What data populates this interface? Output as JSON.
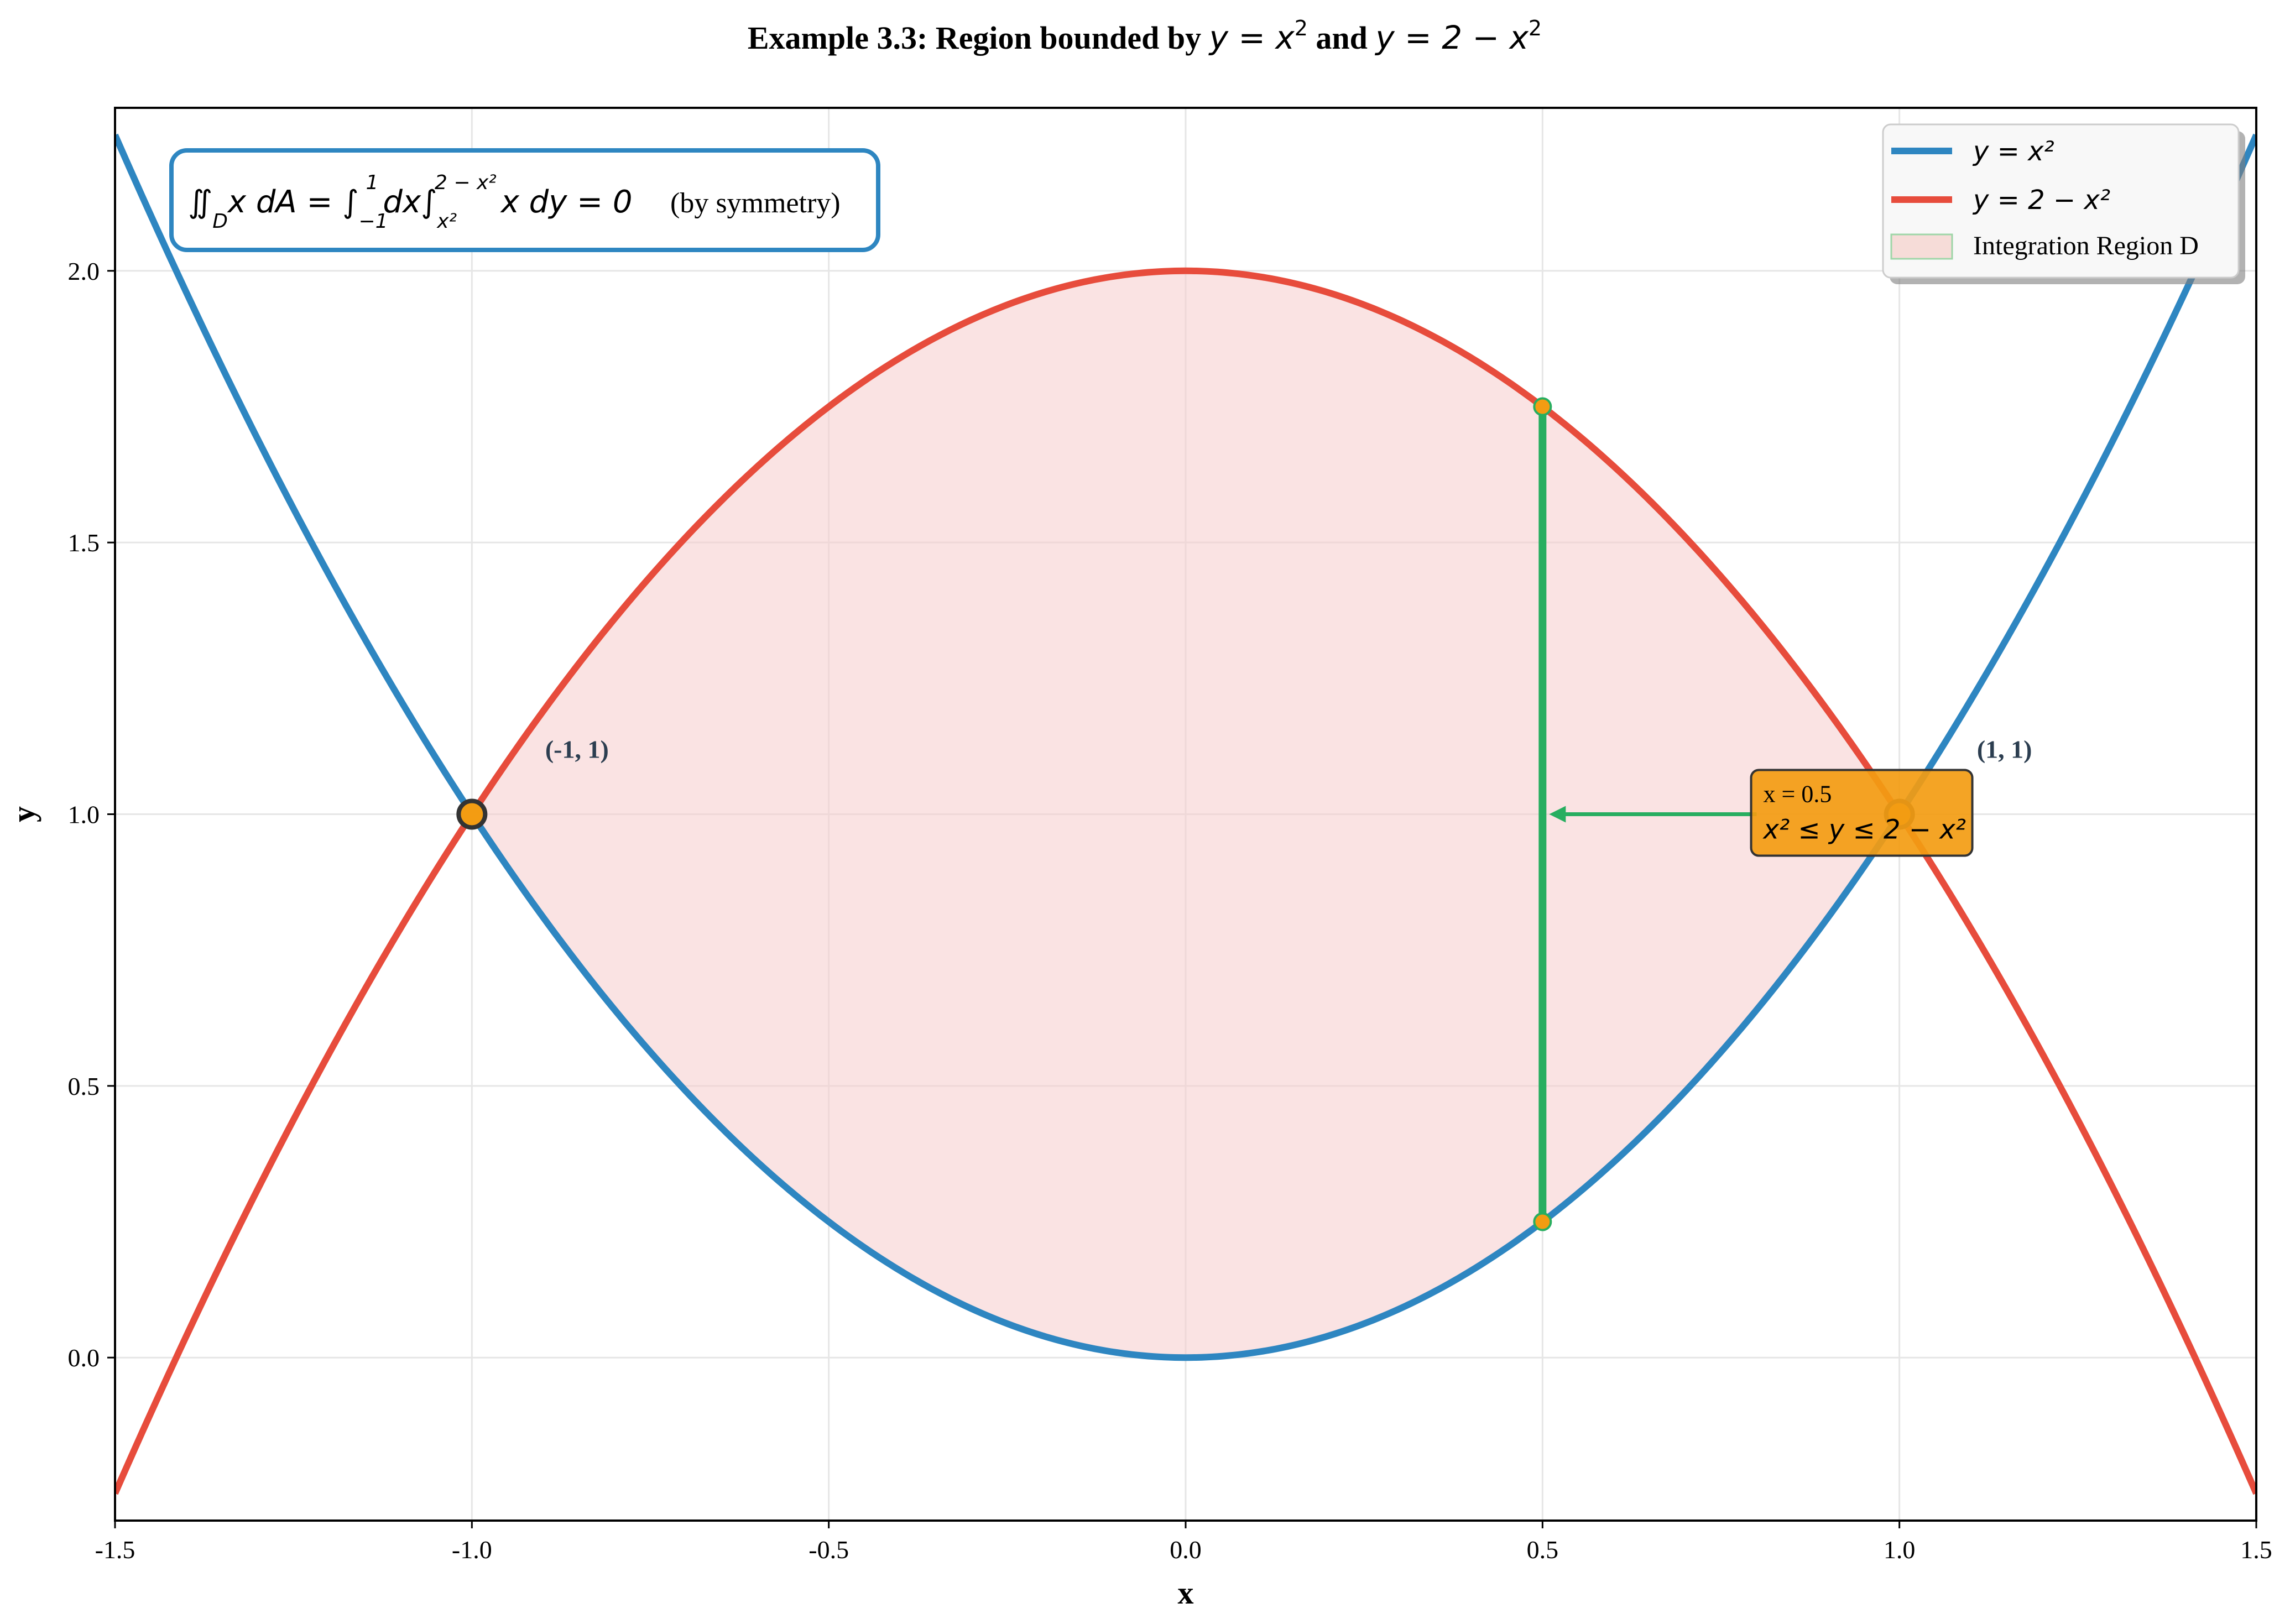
{
  "chart_data": {
    "type": "line",
    "title": {
      "prefix": "Example 3.3: Region bounded by ",
      "eq1": "x",
      "eq1_sup": "2",
      "mid": " and ",
      "eq2": "2 − x",
      "eq2_sup": "2"
    },
    "xlabel": "x",
    "ylabel": "y",
    "xlim": [
      -1.5,
      1.5
    ],
    "ylim": [
      -0.3,
      2.3
    ],
    "xticks": [
      -1.5,
      -1.0,
      -0.5,
      0.0,
      0.5,
      1.0,
      1.5
    ],
    "xtick_labels": [
      "-1.5",
      "-1.0",
      "-0.5",
      "0.0",
      "0.5",
      "1.0",
      "1.5"
    ],
    "yticks": [
      0.0,
      0.5,
      1.0,
      1.5,
      2.0
    ],
    "ytick_labels": [
      "0.0",
      "0.5",
      "1.0",
      "1.5",
      "2.0"
    ],
    "grid": true,
    "legend_position": "top-right",
    "series": [
      {
        "name": "y = x²",
        "expression": "x^2",
        "color": "#2e86c1"
      },
      {
        "name": "y = 2 − x²",
        "expression": "2 - x^2",
        "color": "#e74c3c"
      }
    ],
    "region": {
      "name": "Integration Region D",
      "x_range": [
        -1,
        1
      ],
      "lower": "x^2",
      "upper": "2 - x^2",
      "color": "#f6cccc"
    },
    "intersections": [
      {
        "x": -1,
        "y": 1,
        "label": "(-1, 1)"
      },
      {
        "x": 1,
        "y": 1,
        "label": "(1, 1)"
      }
    ],
    "vertical_slice": {
      "x": 0.5,
      "y_low": 0.25,
      "y_high": 1.75,
      "color": "#27ae60"
    },
    "slice_annotation": {
      "line1": "x = 0.5",
      "line2": "x² ≤ y ≤ 2 − x²",
      "arrow_to": {
        "x": 0.5,
        "y": 1.0
      },
      "text_at": {
        "x": 0.8,
        "y": 1.0
      },
      "color": "#f39c12"
    },
    "formula_box": {
      "math": "∬D x dA = ∫₋₁¹ dx ∫ₓ²²⁻ˣ² x dy = 0",
      "note": "(by symmetry)",
      "border_color": "#2e86c1"
    },
    "colors": {
      "axis": "#000000",
      "grid": "#e6e6e6",
      "label_text": "#2c3e50"
    }
  }
}
